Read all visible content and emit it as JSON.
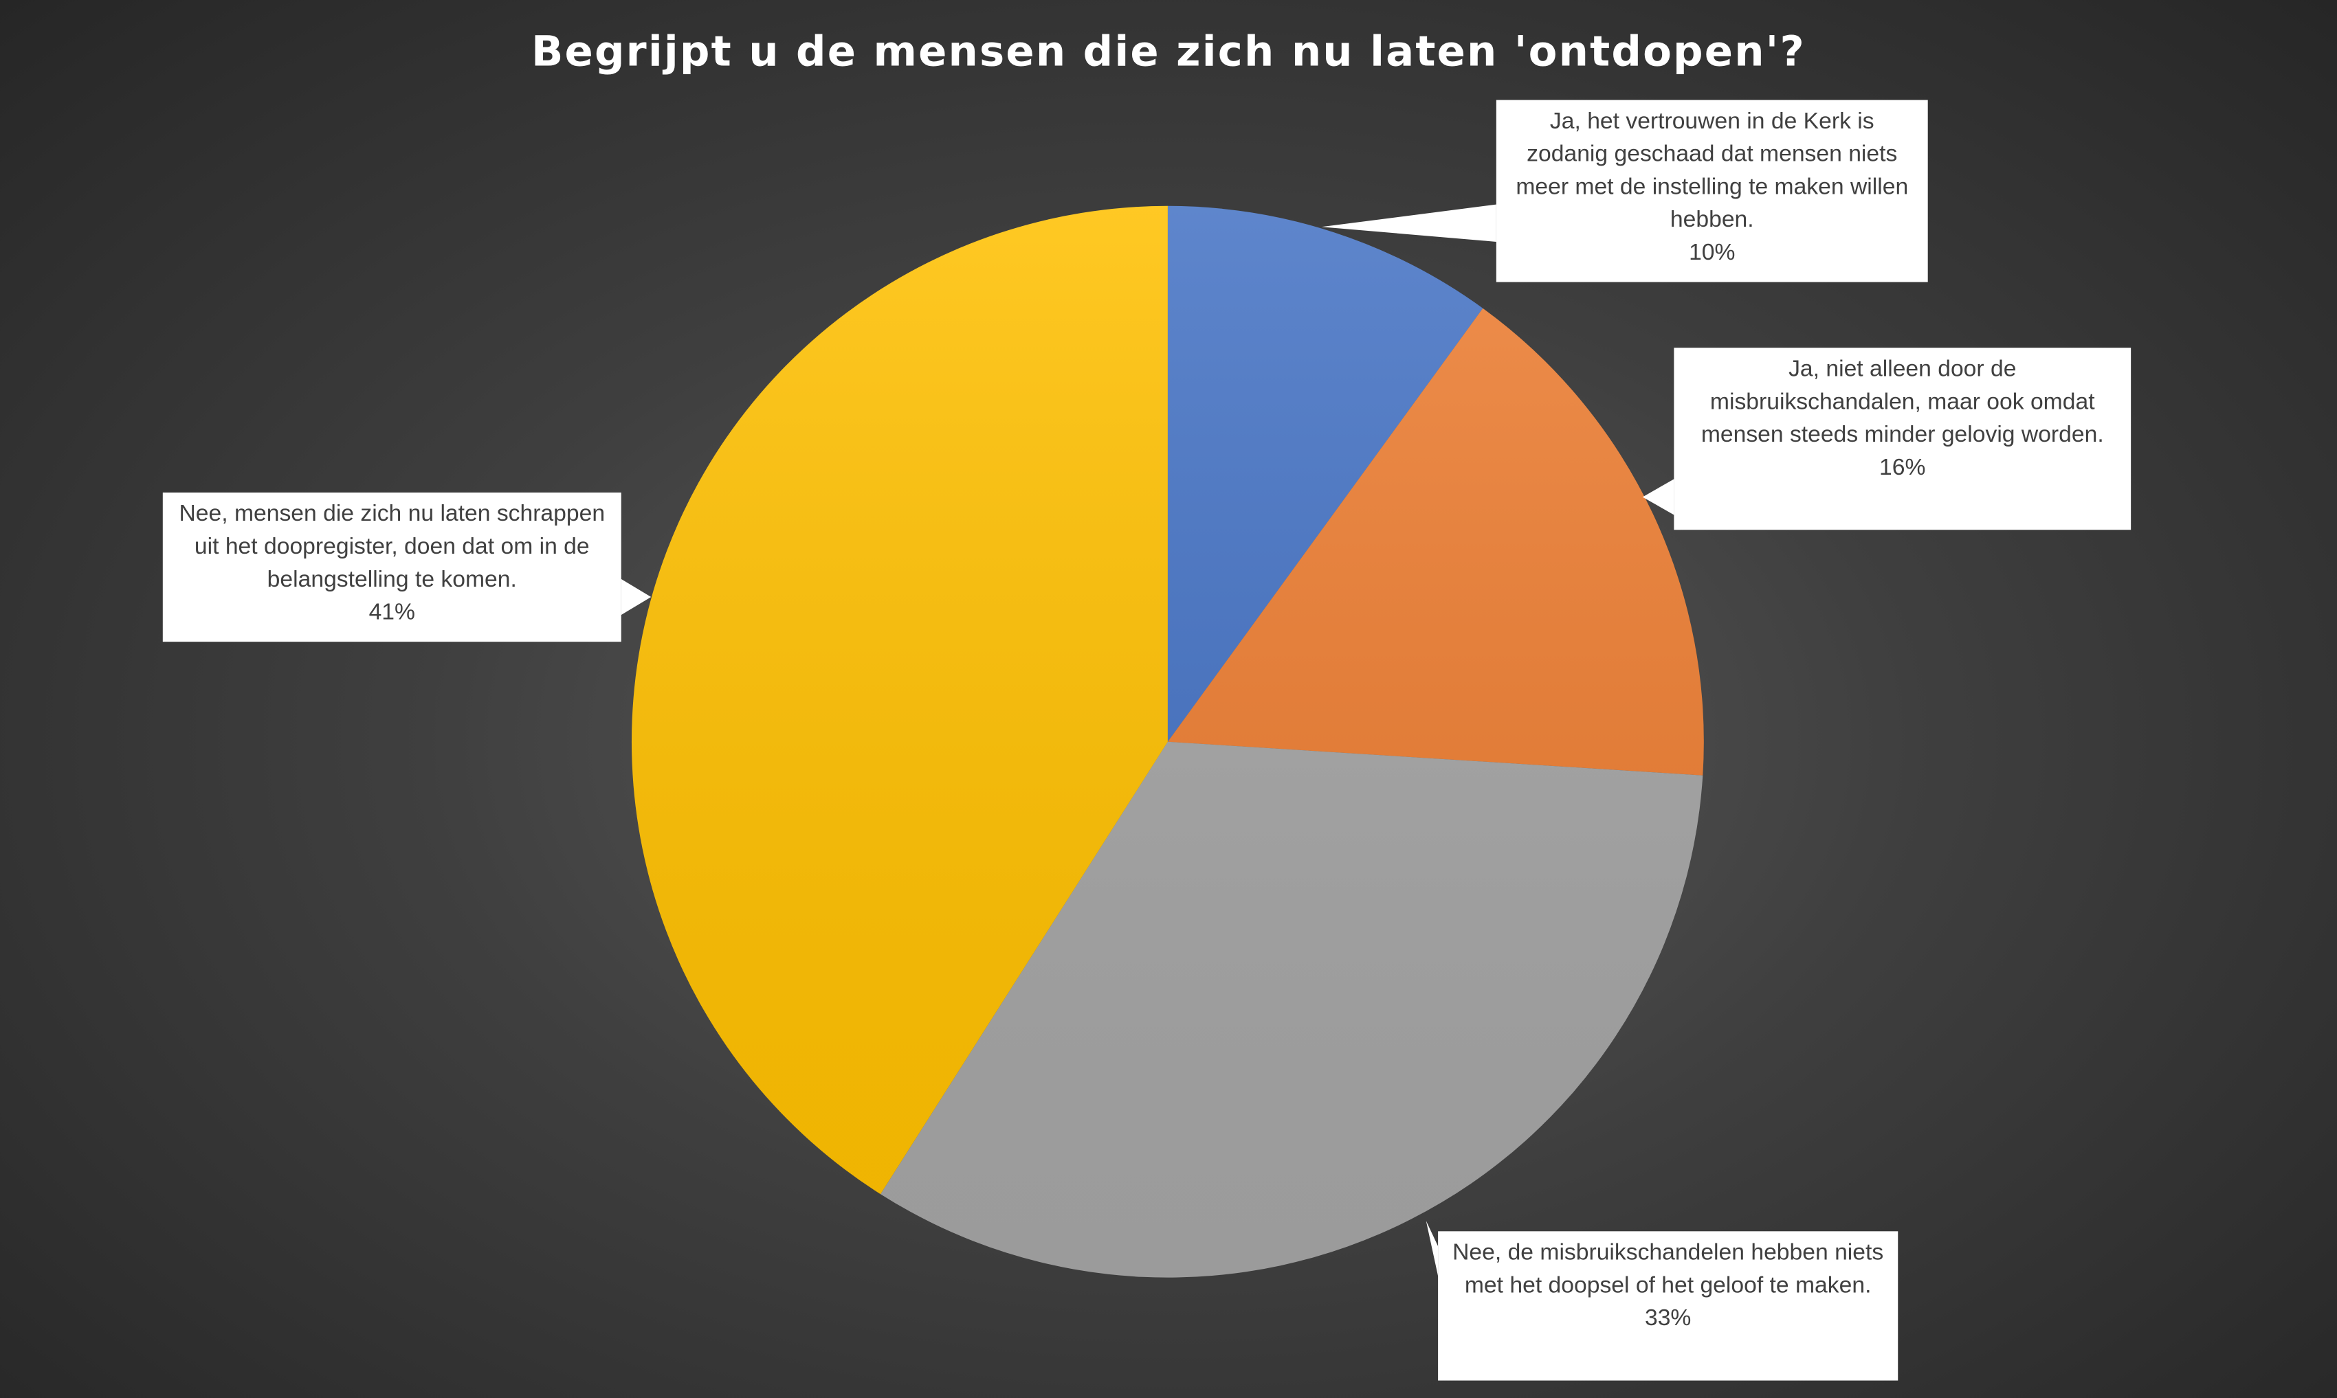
{
  "chart_data": {
    "type": "pie",
    "title": "Begrijpt u de mensen die zich nu laten 'ontdopen'?",
    "categories": [
      "Ja, het vertrouwen in de Kerk is zodanig geschaad dat mensen niets meer met de instelling te maken willen hebben.",
      "Ja, niet alleen door de misbruikschandalen, maar ook omdat mensen steeds minder gelovig worden.",
      "Nee, de misbruikschandelen hebben niets met het doopsel of het geloof te maken.",
      "Nee, mensen die zich nu laten schrappen uit het doopregister, doen dat om in de belangstelling te komen."
    ],
    "values": [
      10,
      16,
      33,
      41
    ],
    "value_labels": [
      "10%",
      "16%",
      "33%",
      "41%"
    ],
    "colors": [
      "#4472c4",
      "#ed7d31",
      "#a5a5a5",
      "#ffc000"
    ]
  }
}
